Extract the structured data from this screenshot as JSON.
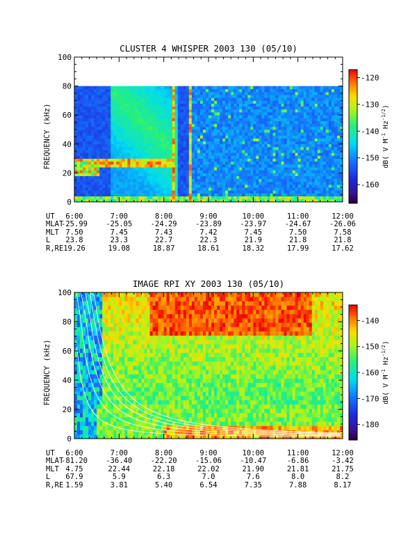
{
  "chart_data": [
    {
      "type": "heatmap",
      "title": "CLUSTER 4 WHISPER 2003 130 (05/10)",
      "ylabel": "FREQUENCY (kHz)",
      "ylim": [
        0,
        100
      ],
      "yticks": [
        "0",
        "20",
        "40",
        "60",
        "80",
        "100"
      ],
      "x_range_hours": [
        6,
        12
      ],
      "xticks": [
        "6:00",
        "7:00",
        "8:00",
        "9:00",
        "10:00",
        "11:00",
        "12:00"
      ],
      "data_top_khz": 80,
      "colorbar": {
        "label": "dB( V M-1 Hz-1/2)",
        "label_parts": [
          "dB( V M",
          "-1",
          " Hz",
          "-1/2",
          ")"
        ],
        "range": [
          -167,
          -117
        ],
        "ticks": [
          "-120",
          "-130",
          "-140",
          "-150",
          "-160"
        ],
        "tick_values": [
          -120,
          -130,
          -140,
          -150,
          -160
        ]
      },
      "features": [
        {
          "desc": "dense band",
          "from_h": 6.0,
          "to_h": 6.55,
          "f_low_khz": 20,
          "f_high_khz": 30,
          "level_db": -120
        },
        {
          "desc": "plasma line",
          "from_h": 6.55,
          "to_h": 8.2,
          "f_khz": 27,
          "level_db": -128
        },
        {
          "desc": "broadband spike",
          "at_h": 8.2,
          "level_db": -118
        },
        {
          "desc": "broadband spike",
          "at_h": 8.6,
          "level_db": -120
        }
      ],
      "ephemeris": {
        "labels": [
          "UT",
          "MLAT",
          "MLT",
          "L",
          "R,RE"
        ],
        "rows": [
          [
            "6:00",
            "7:00",
            "8:00",
            "9:00",
            "10:00",
            "11:00",
            "12:00"
          ],
          [
            "-25.99",
            "-25.05",
            "-24.29",
            "-23.89",
            "-23.97",
            "-24.67",
            "-26.06"
          ],
          [
            "7.50",
            "7.45",
            "7.43",
            "7.42",
            "7.45",
            "7.50",
            "7.58"
          ],
          [
            "23.8",
            "23.3",
            "22.7",
            "22.3",
            "21.9",
            "21.8",
            "21.8"
          ],
          [
            "19.26",
            "19.08",
            "18.87",
            "18.61",
            "18.32",
            "17.99",
            "17.62"
          ]
        ]
      }
    },
    {
      "type": "heatmap",
      "title": "IMAGE RPI XY 2003 130 (05/10)",
      "ylabel": "FREQUENCY (kHz)",
      "ylim": [
        0,
        100
      ],
      "yticks": [
        "0",
        "20",
        "40",
        "60",
        "80",
        "100"
      ],
      "x_range_hours": [
        6,
        12
      ],
      "xticks": [
        "6:00",
        "7:00",
        "8:00",
        "9:00",
        "10:00",
        "11:00",
        "12:00"
      ],
      "data_top_khz": 100,
      "colorbar": {
        "label": "dB( V M-1 Hz-1/2)",
        "label_parts": [
          "dB( V M",
          "-1",
          " Hz",
          "-1/2",
          ")"
        ],
        "range": [
          -186,
          -134
        ],
        "ticks": [
          "-140",
          "-150",
          "-160",
          "-170",
          "-180"
        ],
        "tick_values": [
          -140,
          -150,
          -160,
          -170,
          -180
        ]
      },
      "features": [
        {
          "desc": "intense emission above",
          "f_above_khz": 70,
          "from_h": 7.7,
          "to_h": 11.3,
          "level_db": -136
        },
        {
          "desc": "white cyclotron harmonic curves",
          "count": 6
        }
      ],
      "ephemeris": {
        "labels": [
          "UT",
          "MLAT",
          "MLT",
          "L",
          "R,RE"
        ],
        "rows": [
          [
            "6:00",
            "7:00",
            "8:00",
            "9:00",
            "10:00",
            "11:00",
            "12:00"
          ],
          [
            "-81.20",
            "-36.40",
            "-22.20",
            "-15.06",
            "-10.47",
            "-6.86",
            "-3.42"
          ],
          [
            "4.75",
            "22.44",
            "22.18",
            "22.02",
            "21.90",
            "21.81",
            "21.75"
          ],
          [
            "67.9",
            "5.9",
            "6.3",
            "7.0",
            "7.6",
            "8.0",
            "8.2"
          ],
          [
            "1.59",
            "3.81",
            "5.40",
            "6.54",
            "7.35",
            "7.88",
            "8.17"
          ]
        ]
      }
    }
  ]
}
